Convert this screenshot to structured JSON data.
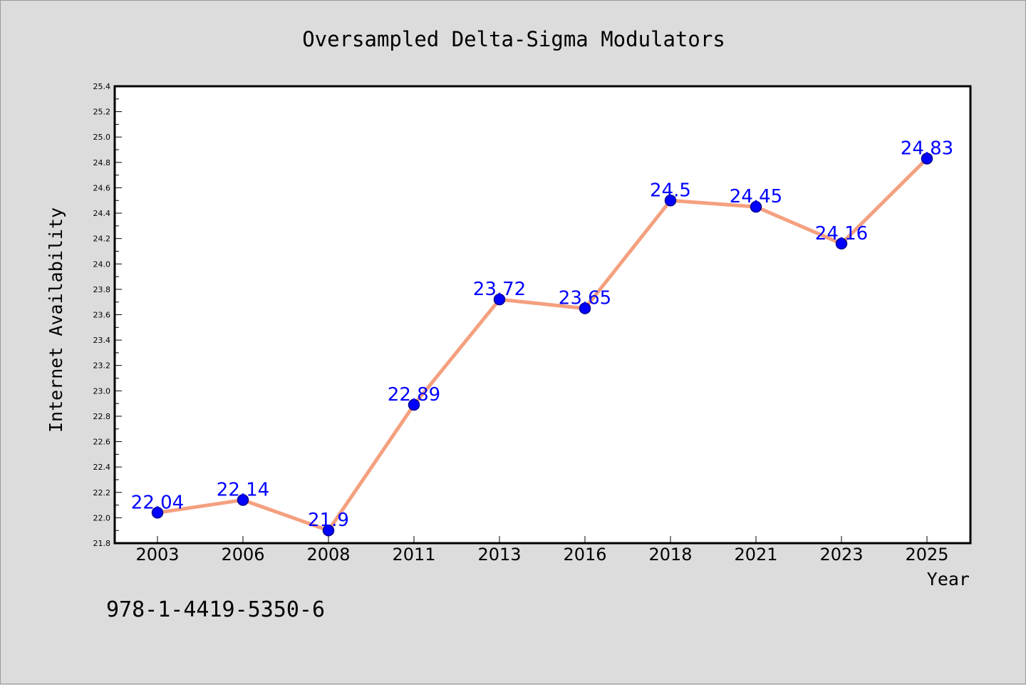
{
  "chart_data": {
    "type": "line",
    "title": "Oversampled Delta-Sigma Modulators",
    "xlabel": "Year",
    "ylabel": "Internet Availability",
    "categories": [
      "2003",
      "2006",
      "2008",
      "2011",
      "2013",
      "2016",
      "2018",
      "2021",
      "2023",
      "2025"
    ],
    "series": [
      {
        "values": [
          22.04,
          22.14,
          21.9,
          22.89,
          23.72,
          23.65,
          24.5,
          24.45,
          24.16,
          24.83
        ]
      }
    ],
    "data_labels": [
      "22.04",
      "22.14",
      "21.9",
      "22.89",
      "23.72",
      "23.65",
      "24.5",
      "24.45",
      "24.16",
      "24.83"
    ],
    "ylim": [
      21.8,
      25.4
    ],
    "yticks": [
      "21.8",
      "22.0",
      "22.2",
      "22.4",
      "22.6",
      "22.8",
      "23.0",
      "23.2",
      "23.4",
      "23.6",
      "23.8",
      "24.0",
      "24.2",
      "24.4",
      "24.6",
      "24.8",
      "25.0",
      "25.2",
      "25.4"
    ],
    "grid": false,
    "legend": "none",
    "colors": {
      "line": "#f4a07f",
      "marker": "#0000ff",
      "label": "#0000ff",
      "background": "#dcdcdc",
      "plot_area": "#ffffff"
    }
  },
  "footer": {
    "isbn": "978-1-4419-5350-6"
  }
}
